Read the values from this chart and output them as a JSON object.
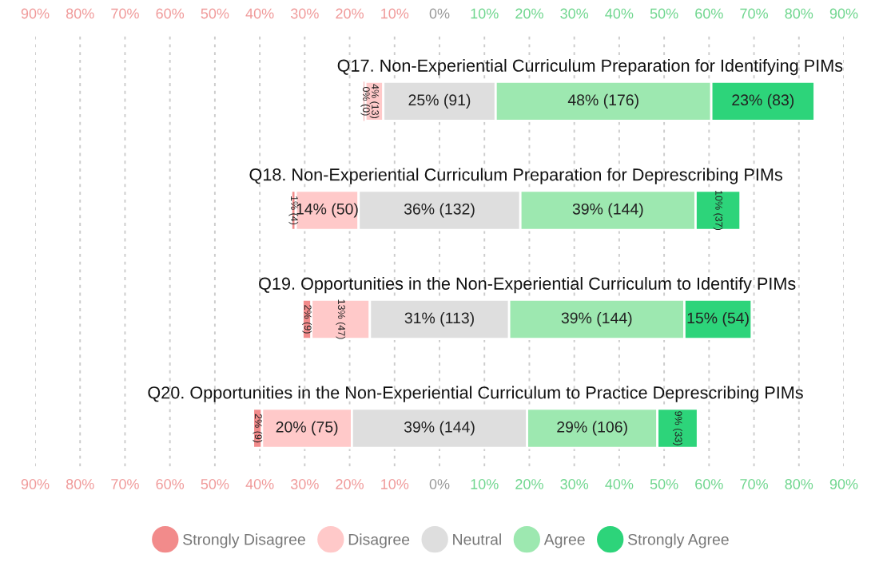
{
  "chart_data": {
    "type": "bar",
    "orientation": "horizontal",
    "categories": [
      "Q17. Non-Experiential Curriculum Preparation for Identifying PIMs",
      "Q18. Non-Experiential Curriculum Preparation for Deprescribing PIMs",
      "Q19. Opportunities in the Non-Experiential Curriculum to Identify PIMs",
      "Q20. Opportunities in the Non-Experiential Curriculum to Practice Deprescribing PIMs"
    ],
    "series": [
      {
        "name": "Strongly Disagree",
        "color": "#f28b8b",
        "base": [
          -16.5,
          -33,
          -30.5,
          -41.5
        ],
        "values": [
          0,
          1,
          2,
          2
        ],
        "value_labels": [
          "0% (0)",
          "1% (4)",
          "2% (9)",
          "2% (9)"
        ]
      },
      {
        "name": "Disagree",
        "color": "#ffc9c9",
        "base": [
          -16.5,
          -32,
          -28.5,
          -39.5
        ],
        "values": [
          4,
          14,
          13,
          20
        ],
        "value_labels": [
          "4% (13)",
          "14% (50)",
          "13% (47)",
          "20% (75)"
        ]
      },
      {
        "name": "Neutral",
        "color": "#dedede",
        "base": [
          -12.5,
          -18,
          -15.5,
          -19.5
        ],
        "values": [
          25,
          36,
          31,
          39
        ],
        "value_labels": [
          "25% (91)",
          "36% (132)",
          "31% (113)",
          "39% (144)"
        ]
      },
      {
        "name": "Agree",
        "color": "#9de8b0",
        "base": [
          12.5,
          18,
          15.5,
          19.5
        ],
        "values": [
          48,
          39,
          39,
          29
        ],
        "value_labels": [
          "48% (176)",
          "39% (144)",
          "39% (144)",
          "29% (106)"
        ]
      },
      {
        "name": "Strongly Agree",
        "color": "#2dd47a",
        "base": [
          60.5,
          57,
          54.5,
          48.5
        ],
        "values": [
          23,
          10,
          15,
          9
        ],
        "value_labels": [
          "23% (83)",
          "10% (37)",
          "15% (54)",
          "9% (33)"
        ]
      }
    ],
    "xlim": [
      -90,
      90
    ],
    "xticks": [
      {
        "value": -90,
        "label": "90%"
      },
      {
        "value": -80,
        "label": "80%"
      },
      {
        "value": -70,
        "label": "70%"
      },
      {
        "value": -60,
        "label": "60%"
      },
      {
        "value": -50,
        "label": "50%"
      },
      {
        "value": -40,
        "label": "40%"
      },
      {
        "value": -30,
        "label": "30%"
      },
      {
        "value": -20,
        "label": "20%"
      },
      {
        "value": -10,
        "label": "10%"
      },
      {
        "value": 0,
        "label": "0%"
      },
      {
        "value": 10,
        "label": "10%"
      },
      {
        "value": 20,
        "label": "20%"
      },
      {
        "value": 30,
        "label": "30%"
      },
      {
        "value": 40,
        "label": "40%"
      },
      {
        "value": 50,
        "label": "50%"
      },
      {
        "value": 60,
        "label": "60%"
      },
      {
        "value": 70,
        "label": "70%"
      },
      {
        "value": 80,
        "label": "80%"
      },
      {
        "value": 90,
        "label": "90%"
      }
    ],
    "grid": "x",
    "legend": "bottom",
    "marker": "circle"
  }
}
